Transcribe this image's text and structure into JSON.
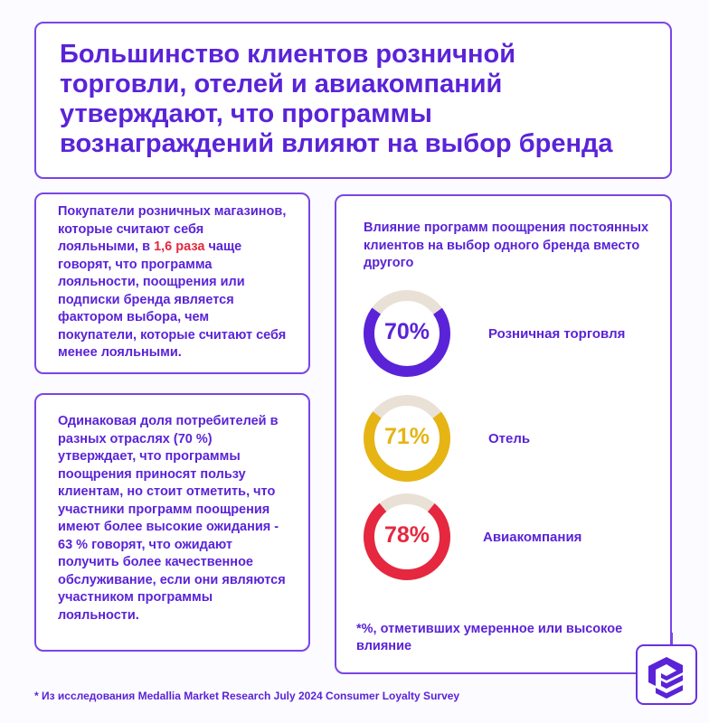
{
  "title": "Большинство  клиентов розничной торговли, отелей и  авиакомпаний утверждают, что  программы вознаграждений  влияют на выбор  бренда",
  "box1": {
    "before": "Покупатели розничных магазинов, которые считают себя лояльными,  в ",
    "highlight": "1,6 раза",
    "after": " чаще говорят, что программа лояльности, поощрения или подписки бренда является фактором выбора, чем покупатели,  которые считают себя менее лояльными."
  },
  "box2": {
    "text": "Одинаковая доля потребителей в разных отраслях (70 %)  утверждает, что программы поощрения приносят пользу клиентам,  но стоит отметить, что участники программ поощрения имеют более  высокие ожидания - 63 % говорят, что ожидают получить более  качественное обслуживание, если они являются участником программы лояльности."
  },
  "chart_data": {
    "type": "pie",
    "title": "Влияние программ поощрения постоянных  клиентов на выбор одного бренда вместо другого",
    "series": [
      {
        "name": "Розничная  торговля",
        "value": 70,
        "label": "70%",
        "color": "#5a23d8"
      },
      {
        "name": "Отель",
        "value": 71,
        "label": "71%",
        "color": "#e6b514"
      },
      {
        "name": "Авиакомпания",
        "value": 78,
        "label": "78%",
        "color": "#e5283f"
      }
    ],
    "remainder_color": "#e9e1d6",
    "note": "*%, отметивших умеренное или высокое влияние"
  },
  "footer": "* Из исследования Medallia Market Research July 2024 Consumer Loyalty Survey"
}
